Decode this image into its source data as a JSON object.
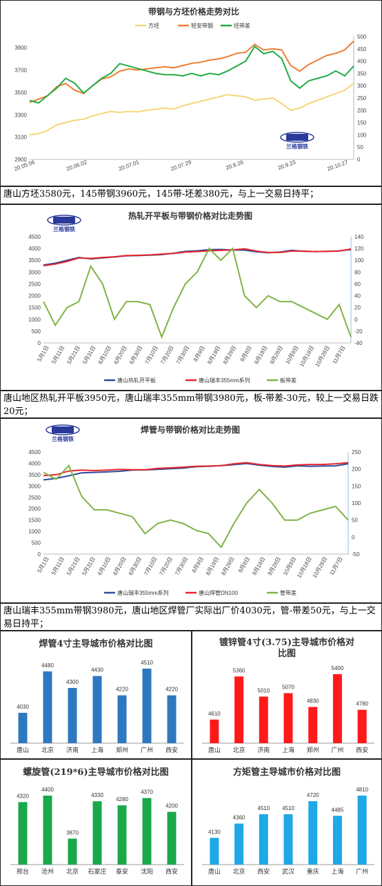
{
  "colors": {
    "billet": "#f5d57a",
    "strip": "#ed7d31",
    "spreadTop": "#22aa44",
    "hr": "#2e4b9c",
    "rs": "#e8242a",
    "green": "#7fb344",
    "weld": "#2e78c0",
    "galv": "#ff1a1a",
    "spiral": "#1aa84a",
    "square": "#1ea8e6"
  },
  "logo_text": "兰格钢铁",
  "captions": [
    "唐山方坯3580元，145带钢3960元，145带-坯差380元，与上一交易日持平；",
    "唐山地区热轧开平板3950元，唐山瑞丰355mm带钢3980元，板-带差-30元，较上一交易日跌20元；",
    "唐山瑞丰355mm带钢3980元，唐山地区焊管厂实际出厂价4030元，管-带差50元，与上一交易日持平；"
  ],
  "chart_data": [
    {
      "type": "line",
      "title": "带钢与方坯价格走势对比",
      "x_ticks": [
        "20.05.06",
        "20.06.02",
        "20.07.01",
        "20.07.29",
        "20.8.26",
        "20.9.23",
        "20.10.27"
      ],
      "y_ticks": [
        "2900",
        "3100",
        "3300",
        "3500",
        "3700",
        "3900"
      ],
      "y2_ticks": [
        "0",
        "50",
        "100",
        "150",
        "200",
        "250",
        "300",
        "350",
        "400",
        "450",
        "500"
      ],
      "ylim": [
        2900,
        4000
      ],
      "y2lim": [
        0,
        500
      ],
      "series": [
        {
          "name": "方坯",
          "axis": "left",
          "values": [
            3120,
            3130,
            3160,
            3210,
            3230,
            3250,
            3260,
            3290,
            3310,
            3330,
            3320,
            3330,
            3325,
            3340,
            3350,
            3360,
            3350,
            3380,
            3400,
            3420,
            3440,
            3460,
            3480,
            3470,
            3460,
            3430,
            3440,
            3450,
            3400,
            3340,
            3360,
            3400,
            3430,
            3460,
            3490,
            3520,
            3580
          ]
        },
        {
          "name": "轻安带钢",
          "axis": "left",
          "values": [
            3410,
            3440,
            3470,
            3550,
            3580,
            3520,
            3490,
            3560,
            3620,
            3640,
            3690,
            3710,
            3700,
            3710,
            3720,
            3730,
            3720,
            3740,
            3760,
            3770,
            3790,
            3800,
            3820,
            3850,
            3860,
            3930,
            3880,
            3890,
            3880,
            3740,
            3690,
            3750,
            3790,
            3830,
            3850,
            3880,
            3960
          ]
        },
        {
          "name": "坯带差",
          "axis": "right",
          "values": [
            240,
            230,
            260,
            290,
            330,
            310,
            270,
            300,
            330,
            350,
            390,
            380,
            370,
            360,
            350,
            345,
            345,
            340,
            350,
            340,
            350,
            345,
            360,
            380,
            400,
            460,
            430,
            440,
            410,
            320,
            290,
            320,
            330,
            340,
            360,
            340,
            380
          ]
        }
      ]
    },
    {
      "type": "line",
      "title": "热轧开平板与带钢价格对比走势图",
      "x_ticks": [
        "5月1日",
        "5月11日",
        "5月21日",
        "5月31日",
        "6月10日",
        "6月20日",
        "6月30日",
        "7月10日",
        "7月20日",
        "7月30日",
        "8月9日",
        "8月19日",
        "8月29日",
        "9月8日",
        "9月18日",
        "9月28日",
        "10月8日",
        "10月18日",
        "10月28日",
        "11月7日"
      ],
      "y_ticks": [
        "0",
        "500",
        "1000",
        "1500",
        "2000",
        "2500",
        "3000",
        "3500",
        "4000",
        "4500"
      ],
      "y2_ticks": [
        "-40",
        "-20",
        "0",
        "20",
        "40",
        "60",
        "80",
        "100",
        "120",
        "140"
      ],
      "ylim": [
        0,
        4500
      ],
      "y2lim": [
        -40,
        140
      ],
      "series": [
        {
          "name": "唐山热轧开平板",
          "axis": "left",
          "values": [
            3300,
            3380,
            3500,
            3620,
            3560,
            3600,
            3640,
            3690,
            3700,
            3720,
            3740,
            3800,
            3880,
            3900,
            3950,
            3960,
            3940,
            3930,
            3860,
            3820,
            3850,
            3920,
            3880,
            3870,
            3880,
            3900,
            3950
          ]
        },
        {
          "name": "唐山瑞丰355mm系列",
          "axis": "left",
          "values": [
            3270,
            3340,
            3450,
            3600,
            3580,
            3620,
            3650,
            3700,
            3710,
            3730,
            3760,
            3790,
            3850,
            3870,
            3900,
            3920,
            3940,
            3990,
            3890,
            3830,
            3830,
            3890,
            3890,
            3870,
            3880,
            3890,
            3980
          ]
        },
        {
          "name": "板带差",
          "axis": "right",
          "values": [
            30,
            -10,
            20,
            30,
            90,
            60,
            0,
            30,
            30,
            25,
            -30,
            20,
            60,
            80,
            120,
            100,
            120,
            40,
            20,
            40,
            30,
            30,
            20,
            10,
            0,
            25,
            -30
          ]
        }
      ]
    },
    {
      "type": "line",
      "title": "焊管与带钢价格对比走势图",
      "x_ticks": [
        "5月1日",
        "5月11日",
        "5月21日",
        "5月31日",
        "6月10日",
        "6月20日",
        "6月30日",
        "7月10日",
        "7月20日",
        "7月30日",
        "8月9日",
        "8月19日",
        "8月29日",
        "9月8日",
        "9月18日",
        "9月28日",
        "10月8日",
        "10月18日",
        "10月28日",
        "11月7日"
      ],
      "y_ticks": [
        "0",
        "500",
        "1000",
        "1500",
        "2000",
        "2500",
        "3000",
        "3500",
        "4000",
        "4500"
      ],
      "y2_ticks": [
        "-50",
        "0",
        "50",
        "100",
        "150",
        "200",
        "250"
      ],
      "ylim": [
        0,
        4500
      ],
      "y2lim": [
        -50,
        250
      ],
      "series": [
        {
          "name": "唐山瑞丰355mm系列",
          "axis": "left",
          "values": [
            3270,
            3340,
            3450,
            3580,
            3600,
            3620,
            3650,
            3700,
            3710,
            3730,
            3760,
            3790,
            3850,
            3870,
            3900,
            3940,
            3990,
            3920,
            3860,
            3830,
            3890,
            3870,
            3880,
            3890,
            3980
          ]
        },
        {
          "name": "唐山焊管DN100",
          "axis": "left",
          "values": [
            3460,
            3500,
            3660,
            3700,
            3680,
            3700,
            3730,
            3720,
            3720,
            3780,
            3800,
            3830,
            3870,
            3880,
            3900,
            3980,
            4030,
            3950,
            3900,
            3880,
            3930,
            3950,
            3950,
            3980,
            4030
          ]
        },
        {
          "name": "管带差",
          "axis": "right",
          "values": [
            190,
            170,
            210,
            120,
            80,
            80,
            70,
            60,
            10,
            40,
            50,
            40,
            20,
            10,
            -30,
            40,
            100,
            140,
            100,
            50,
            50,
            70,
            80,
            90,
            50
          ]
        }
      ]
    },
    {
      "type": "bar",
      "title": "焊管4寸主导城市价格对比图",
      "categories": [
        "唐山",
        "北京",
        "济南",
        "上海",
        "郑州",
        "广州",
        "西安"
      ],
      "values": [
        4030,
        4480,
        4300,
        4430,
        4220,
        4510,
        4220
      ]
    },
    {
      "type": "bar",
      "title": "镀锌管4寸(3.75)主导城市价格对比图",
      "title_lines": [
        "镀锌管4寸(3.75)主导城市价格对",
        "比图"
      ],
      "categories": [
        "唐山",
        "北京",
        "济南",
        "上海",
        "郑州",
        "广州",
        "西安"
      ],
      "values": [
        4610,
        5360,
        5010,
        5070,
        4830,
        5400,
        4780
      ]
    },
    {
      "type": "bar",
      "title": "螺旋管(219*6)主导城市价格对比图",
      "categories": [
        "邢台",
        "沧州",
        "北京",
        "石家庄",
        "泰安",
        "沈阳",
        "西安"
      ],
      "values": [
        4320,
        4400,
        3870,
        4330,
        4280,
        4370,
        4200
      ]
    },
    {
      "type": "bar",
      "title": "方矩管主导城市价格对比图",
      "categories": [
        "唐山",
        "北京",
        "西安",
        "武汉",
        "重庆",
        "上海",
        "广州"
      ],
      "values": [
        4130,
        4360,
        4510,
        4510,
        4720,
        4485,
        4810
      ]
    }
  ]
}
